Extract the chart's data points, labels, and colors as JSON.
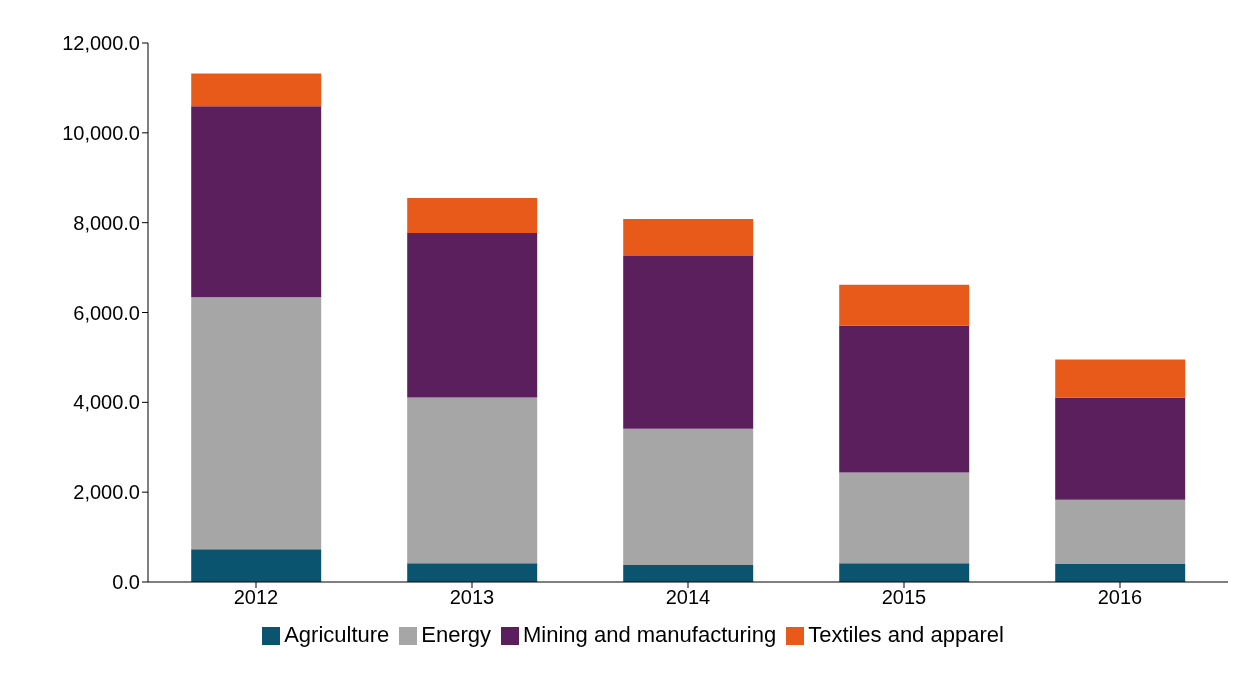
{
  "chart_data": {
    "type": "bar",
    "stacked": true,
    "categories": [
      "2012",
      "2013",
      "2014",
      "2015",
      "2016"
    ],
    "series": [
      {
        "name": "Agriculture",
        "color": "#0b5470",
        "values": [
          730,
          420,
          380,
          420,
          400
        ]
      },
      {
        "name": "Energy",
        "color": "#a6a6a6",
        "values": [
          5610,
          3690,
          3030,
          2020,
          1430
        ]
      },
      {
        "name": "Mining and manufacturing",
        "color": "#5b1f5e",
        "values": [
          4250,
          3660,
          3850,
          3270,
          2280
        ]
      },
      {
        "name": "Textiles and apparel",
        "color": "#e85a1a",
        "values": [
          730,
          780,
          820,
          910,
          845
        ]
      }
    ],
    "ylim": [
      0,
      12000
    ],
    "yticks": [
      {
        "value": 0,
        "label": "0.0"
      },
      {
        "value": 2000,
        "label": "2,000.0"
      },
      {
        "value": 4000,
        "label": "4,000.0"
      },
      {
        "value": 6000,
        "label": "6,000.0"
      },
      {
        "value": 8000,
        "label": "8,000.0"
      },
      {
        "value": 10000,
        "label": "10,000.0"
      },
      {
        "value": 12000,
        "label": "12,000.0"
      }
    ],
    "grid": false,
    "legend": "bottom"
  }
}
